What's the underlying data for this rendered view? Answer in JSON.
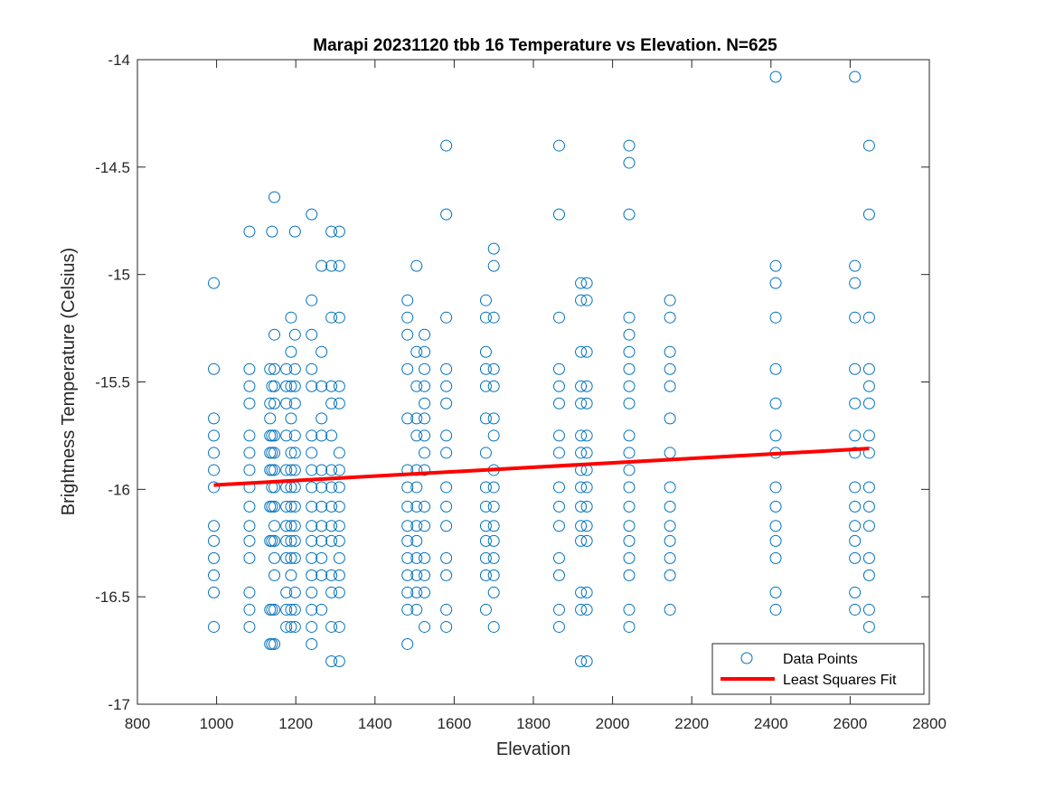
{
  "chart_data": {
    "type": "scatter",
    "title": "Marapi 20231120 tbb 16 Temperature vs Elevation. N=625",
    "xlabel": "Elevation",
    "ylabel": "Brightness Temperature (Celsius)",
    "xlim": [
      800,
      2800
    ],
    "ylim": [
      -17,
      -14
    ],
    "xticks": [
      800,
      1000,
      1200,
      1400,
      1600,
      1800,
      2000,
      2200,
      2400,
      2600,
      2800
    ],
    "yticks": [
      -17,
      -16.5,
      -16,
      -15.5,
      -15,
      -14.5,
      -14
    ],
    "grid": false,
    "legend": {
      "placement": "bottom-right",
      "entries": [
        "Data Points",
        "Least Squares Fit"
      ]
    },
    "colors": {
      "points": "#0072BD",
      "fit": "#FF0000"
    },
    "series": [
      {
        "name": "Data Points",
        "columns": [
          {
            "x": 993,
            "y": [
              -15.04,
              -15.44,
              -15.67,
              -15.75,
              -15.83,
              -15.91,
              -15.99,
              -16.17,
              -16.24,
              -16.32,
              -16.4,
              -16.48,
              -16.64
            ]
          },
          {
            "x": 1083,
            "y": [
              -14.8,
              -15.44,
              -15.52,
              -15.6,
              -15.75,
              -15.83,
              -15.91,
              -15.99,
              -16.08,
              -16.17,
              -16.24,
              -16.32,
              -16.48,
              -16.56,
              -16.64
            ]
          },
          {
            "x": 1135,
            "y": [
              -15.44,
              -15.6,
              -15.67,
              -15.75,
              -15.83,
              -15.91,
              -16.08,
              -16.24,
              -16.56,
              -16.72
            ]
          },
          {
            "x": 1140,
            "y": [
              -14.8,
              -15.52,
              -15.75,
              -15.83,
              -15.91,
              -15.99,
              -16.08,
              -16.24,
              -16.56,
              -16.72
            ]
          },
          {
            "x": 1146,
            "y": [
              -14.64,
              -15.28,
              -15.44,
              -15.52,
              -15.6,
              -15.75,
              -15.83,
              -15.91,
              -15.99,
              -16.08,
              -16.17,
              -16.24,
              -16.32,
              -16.4,
              -16.56,
              -16.72
            ]
          },
          {
            "x": 1176,
            "y": [
              -15.44,
              -15.52,
              -15.6,
              -15.75,
              -15.91,
              -15.99,
              -16.08,
              -16.17,
              -16.24,
              -16.32,
              -16.48,
              -16.56,
              -16.64
            ]
          },
          {
            "x": 1188,
            "y": [
              -15.2,
              -15.36,
              -15.52,
              -15.67,
              -15.83,
              -15.91,
              -15.99,
              -16.08,
              -16.17,
              -16.24,
              -16.32,
              -16.4,
              -16.56,
              -16.64
            ]
          },
          {
            "x": 1198,
            "y": [
              -14.8,
              -15.28,
              -15.44,
              -15.52,
              -15.6,
              -15.75,
              -15.83,
              -15.91,
              -15.99,
              -16.08,
              -16.17,
              -16.24,
              -16.32,
              -16.48,
              -16.56,
              -16.64
            ]
          },
          {
            "x": 1240,
            "y": [
              -14.72,
              -15.12,
              -15.28,
              -15.44,
              -15.52,
              -15.75,
              -15.83,
              -15.91,
              -15.99,
              -16.08,
              -16.17,
              -16.24,
              -16.32,
              -16.4,
              -16.48,
              -16.56,
              -16.64,
              -16.72
            ]
          },
          {
            "x": 1265,
            "y": [
              -14.96,
              -15.36,
              -15.52,
              -15.67,
              -15.75,
              -15.91,
              -15.99,
              -16.08,
              -16.17,
              -16.24,
              -16.32,
              -16.4,
              -16.56
            ]
          },
          {
            "x": 1290,
            "y": [
              -14.8,
              -14.96,
              -15.2,
              -15.52,
              -15.6,
              -15.75,
              -15.91,
              -15.99,
              -16.08,
              -16.17,
              -16.24,
              -16.4,
              -16.48,
              -16.64,
              -16.8
            ]
          },
          {
            "x": 1310,
            "y": [
              -14.8,
              -14.96,
              -15.2,
              -15.52,
              -15.6,
              -15.83,
              -15.91,
              -15.99,
              -16.08,
              -16.17,
              -16.24,
              -16.32,
              -16.4,
              -16.48,
              -16.64,
              -16.8
            ]
          },
          {
            "x": 1482,
            "y": [
              -15.12,
              -15.2,
              -15.28,
              -15.44,
              -15.67,
              -15.91,
              -15.99,
              -16.08,
              -16.17,
              -16.24,
              -16.32,
              -16.4,
              -16.48,
              -16.56,
              -16.72
            ]
          },
          {
            "x": 1505,
            "y": [
              -14.96,
              -15.36,
              -15.52,
              -15.67,
              -15.75,
              -15.91,
              -15.99,
              -16.08,
              -16.17,
              -16.24,
              -16.32,
              -16.4,
              -16.48,
              -16.56
            ]
          },
          {
            "x": 1525,
            "y": [
              -15.28,
              -15.36,
              -15.44,
              -15.52,
              -15.6,
              -15.67,
              -15.75,
              -15.83,
              -15.91,
              -16.08,
              -16.17,
              -16.32,
              -16.4,
              -16.48,
              -16.64
            ]
          },
          {
            "x": 1580,
            "y": [
              -14.4,
              -14.72,
              -15.2,
              -15.44,
              -15.52,
              -15.6,
              -15.75,
              -15.83,
              -15.99,
              -16.08,
              -16.17,
              -16.32,
              -16.4,
              -16.56,
              -16.64
            ]
          },
          {
            "x": 1680,
            "y": [
              -15.12,
              -15.2,
              -15.36,
              -15.44,
              -15.52,
              -15.67,
              -15.83,
              -15.99,
              -16.08,
              -16.17,
              -16.24,
              -16.32,
              -16.4,
              -16.56
            ]
          },
          {
            "x": 1700,
            "y": [
              -14.88,
              -14.96,
              -15.2,
              -15.44,
              -15.52,
              -15.67,
              -15.75,
              -15.91,
              -15.99,
              -16.08,
              -16.17,
              -16.24,
              -16.32,
              -16.4,
              -16.48,
              -16.64
            ]
          },
          {
            "x": 1865,
            "y": [
              -14.4,
              -14.72,
              -15.2,
              -15.44,
              -15.52,
              -15.6,
              -15.75,
              -15.83,
              -15.99,
              -16.08,
              -16.17,
              -16.32,
              -16.4,
              -16.56,
              -16.64
            ]
          },
          {
            "x": 1920,
            "y": [
              -15.04,
              -15.12,
              -15.36,
              -15.52,
              -15.6,
              -15.75,
              -15.83,
              -15.91,
              -15.99,
              -16.08,
              -16.17,
              -16.24,
              -16.48,
              -16.56,
              -16.8
            ]
          },
          {
            "x": 1935,
            "y": [
              -15.04,
              -15.12,
              -15.36,
              -15.52,
              -15.6,
              -15.75,
              -15.83,
              -15.91,
              -15.99,
              -16.08,
              -16.17,
              -16.24,
              -16.48,
              -16.56,
              -16.8
            ]
          },
          {
            "x": 2042,
            "y": [
              -14.4,
              -14.48,
              -14.72,
              -15.2,
              -15.28,
              -15.36,
              -15.44,
              -15.52,
              -15.6,
              -15.75,
              -15.83,
              -15.91,
              -15.99,
              -16.08,
              -16.17,
              -16.24,
              -16.32,
              -16.4,
              -16.56,
              -16.64
            ]
          },
          {
            "x": 2145,
            "y": [
              -15.12,
              -15.2,
              -15.36,
              -15.44,
              -15.52,
              -15.67,
              -15.83,
              -15.99,
              -16.08,
              -16.17,
              -16.24,
              -16.32,
              -16.4,
              -16.56
            ]
          },
          {
            "x": 2412,
            "y": [
              -14.08,
              -14.96,
              -15.04,
              -15.2,
              -15.44,
              -15.6,
              -15.75,
              -15.83,
              -15.99,
              -16.08,
              -16.17,
              -16.24,
              -16.32,
              -16.48,
              -16.56
            ]
          },
          {
            "x": 2612,
            "y": [
              -14.08,
              -14.96,
              -15.04,
              -15.2,
              -15.44,
              -15.6,
              -15.75,
              -15.83,
              -15.99,
              -16.08,
              -16.17,
              -16.24,
              -16.32,
              -16.48,
              -16.56
            ]
          },
          {
            "x": 2648,
            "y": [
              -14.4,
              -14.72,
              -15.2,
              -15.44,
              -15.52,
              -15.6,
              -15.75,
              -15.83,
              -15.99,
              -16.08,
              -16.17,
              -16.32,
              -16.4,
              -16.56,
              -16.64
            ]
          }
        ]
      },
      {
        "name": "Least Squares Fit",
        "x": [
          993,
          2648
        ],
        "y": [
          -15.98,
          -15.81
        ]
      }
    ]
  }
}
